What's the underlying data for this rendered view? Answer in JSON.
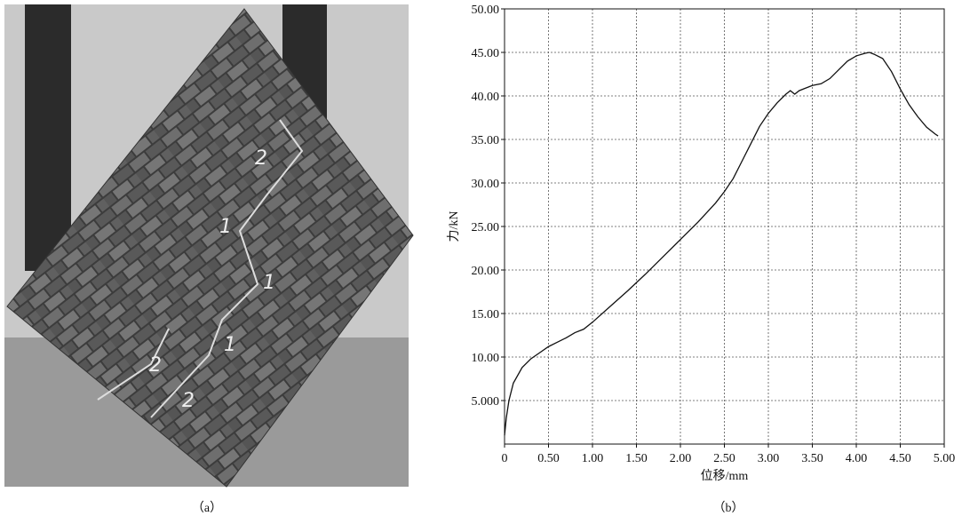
{
  "photo": {
    "labels": [
      "2",
      "1",
      "1",
      "1",
      "2",
      "2"
    ]
  },
  "captions": {
    "a": "（a）",
    "b": "（b）"
  },
  "chart_data": {
    "type": "line",
    "xlabel": "位移/mm",
    "ylabel": "力/kN",
    "xlim": [
      0,
      5
    ],
    "ylim": [
      0,
      50
    ],
    "xticks": [
      0,
      {
        "value": 0.5,
        "label": "0.50"
      },
      {
        "value": 1,
        "label": "1.00"
      },
      {
        "value": 1.5,
        "label": "1.50"
      },
      {
        "value": 2,
        "label": "2.00"
      },
      {
        "value": 2.5,
        "label": "2.50"
      },
      {
        "value": 3,
        "label": "3.00"
      },
      {
        "value": 3.5,
        "label": "3.50"
      },
      {
        "value": 4,
        "label": "4.00"
      },
      {
        "value": 4.5,
        "label": "4.50"
      },
      {
        "value": 5,
        "label": "5.00"
      }
    ],
    "yticks": [
      {
        "value": 5,
        "label": "5.000"
      },
      {
        "value": 10,
        "label": "10.00"
      },
      {
        "value": 15,
        "label": "15.00"
      },
      {
        "value": 20,
        "label": "20.00"
      },
      {
        "value": 25,
        "label": "25.00"
      },
      {
        "value": 30,
        "label": "30.00"
      },
      {
        "value": 35,
        "label": "35.00"
      },
      {
        "value": 40,
        "label": "40.00"
      },
      {
        "value": 45,
        "label": "45.00"
      },
      {
        "value": 50,
        "label": "50.00"
      }
    ],
    "grid": true,
    "x": [
      0,
      0.02,
      0.05,
      0.1,
      0.2,
      0.3,
      0.4,
      0.5,
      0.6,
      0.7,
      0.8,
      0.9,
      1.0,
      1.2,
      1.4,
      1.6,
      1.8,
      2.0,
      2.2,
      2.4,
      2.5,
      2.6,
      2.7,
      2.8,
      2.9,
      3.0,
      3.1,
      3.2,
      3.25,
      3.3,
      3.35,
      3.4,
      3.5,
      3.6,
      3.7,
      3.8,
      3.9,
      4.0,
      4.1,
      4.15,
      4.2,
      4.3,
      4.4,
      4.5,
      4.6,
      4.7,
      4.8,
      4.9,
      4.93
    ],
    "series": [
      {
        "color": "#111111",
        "values": [
          1.0,
          3,
          5,
          7,
          8.8,
          9.8,
          10.5,
          11.2,
          11.7,
          12.2,
          12.8,
          13.2,
          14.0,
          15.8,
          17.6,
          19.5,
          21.5,
          23.5,
          25.5,
          27.7,
          29.0,
          30.5,
          32.5,
          34.5,
          36.5,
          38.0,
          39.2,
          40.2,
          40.6,
          40.2,
          40.6,
          40.8,
          41.2,
          41.4,
          42.0,
          43.0,
          44.0,
          44.6,
          44.9,
          45.0,
          44.8,
          44.3,
          42.8,
          40.8,
          39.0,
          37.6,
          36.4,
          35.6,
          35.4
        ]
      }
    ]
  }
}
